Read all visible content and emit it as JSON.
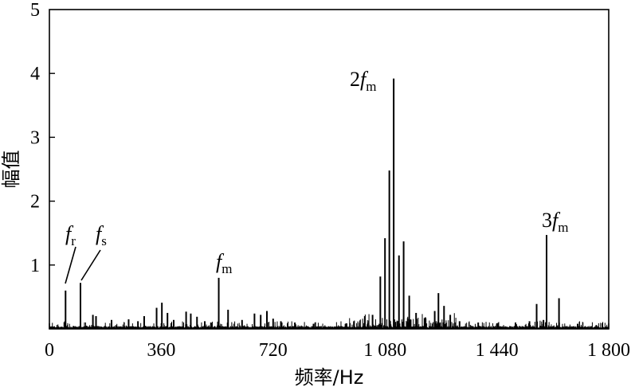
{
  "chart_data": {
    "type": "line",
    "title": "",
    "xlabel": "频率/Hz",
    "ylabel": "幅值",
    "xlim": [
      0,
      1800
    ],
    "ylim": [
      0,
      5
    ],
    "x_ticks": [
      0,
      360,
      720,
      1080,
      1440,
      1800
    ],
    "x_tick_labels": [
      "0",
      "360",
      "720",
      "1 080",
      "1 440",
      "1 800"
    ],
    "y_ticks": [
      1,
      2,
      3,
      4,
      5
    ],
    "y_tick_labels": [
      "1",
      "2",
      "3",
      "4",
      "5"
    ],
    "grid": false,
    "legend": "none",
    "series": [
      {
        "peaks": [
          {
            "x": 52,
            "y": 0.6
          },
          {
            "x": 100,
            "y": 0.72
          },
          {
            "x": 140,
            "y": 0.22
          },
          {
            "x": 150,
            "y": 0.2
          },
          {
            "x": 200,
            "y": 0.14
          },
          {
            "x": 255,
            "y": 0.15
          },
          {
            "x": 285,
            "y": 0.12
          },
          {
            "x": 305,
            "y": 0.2
          },
          {
            "x": 345,
            "y": 0.33
          },
          {
            "x": 362,
            "y": 0.41
          },
          {
            "x": 380,
            "y": 0.25
          },
          {
            "x": 400,
            "y": 0.14
          },
          {
            "x": 440,
            "y": 0.27
          },
          {
            "x": 455,
            "y": 0.24
          },
          {
            "x": 475,
            "y": 0.19
          },
          {
            "x": 500,
            "y": 0.12
          },
          {
            "x": 520,
            "y": 0.1
          },
          {
            "x": 545,
            "y": 0.8
          },
          {
            "x": 575,
            "y": 0.3
          },
          {
            "x": 620,
            "y": 0.14
          },
          {
            "x": 660,
            "y": 0.24
          },
          {
            "x": 680,
            "y": 0.22
          },
          {
            "x": 700,
            "y": 0.28
          },
          {
            "x": 720,
            "y": 0.16
          },
          {
            "x": 745,
            "y": 0.12
          },
          {
            "x": 790,
            "y": 0.1
          },
          {
            "x": 850,
            "y": 0.08
          },
          {
            "x": 980,
            "y": 0.12
          },
          {
            "x": 1015,
            "y": 0.2
          },
          {
            "x": 1040,
            "y": 0.22
          },
          {
            "x": 1065,
            "y": 0.82
          },
          {
            "x": 1080,
            "y": 1.42
          },
          {
            "x": 1094,
            "y": 2.48
          },
          {
            "x": 1108,
            "y": 3.92
          },
          {
            "x": 1125,
            "y": 1.15
          },
          {
            "x": 1140,
            "y": 1.37
          },
          {
            "x": 1158,
            "y": 0.52
          },
          {
            "x": 1180,
            "y": 0.25
          },
          {
            "x": 1210,
            "y": 0.18
          },
          {
            "x": 1240,
            "y": 0.28
          },
          {
            "x": 1252,
            "y": 0.56
          },
          {
            "x": 1270,
            "y": 0.36
          },
          {
            "x": 1290,
            "y": 0.22
          },
          {
            "x": 1320,
            "y": 0.12
          },
          {
            "x": 1380,
            "y": 0.1
          },
          {
            "x": 1440,
            "y": 0.08
          },
          {
            "x": 1500,
            "y": 0.1
          },
          {
            "x": 1545,
            "y": 0.12
          },
          {
            "x": 1568,
            "y": 0.39
          },
          {
            "x": 1590,
            "y": 0.14
          },
          {
            "x": 1600,
            "y": 1.47
          },
          {
            "x": 1640,
            "y": 0.48
          },
          {
            "x": 1700,
            "y": 0.08
          },
          {
            "x": 1760,
            "y": 0.06
          }
        ]
      }
    ],
    "annotations": [
      {
        "base": "f",
        "sub": "r",
        "x": 58,
        "y": 0.72
      },
      {
        "base": "f",
        "sub": "s",
        "x": 105,
        "y": 0.75
      },
      {
        "base": "f",
        "sub": "m",
        "x": 545,
        "y": 0.9
      },
      {
        "base": "2f",
        "sub": "m",
        "x": 1108,
        "y": 4.0
      },
      {
        "base": "3f",
        "sub": "m",
        "x": 1600,
        "y": 1.6
      }
    ]
  }
}
